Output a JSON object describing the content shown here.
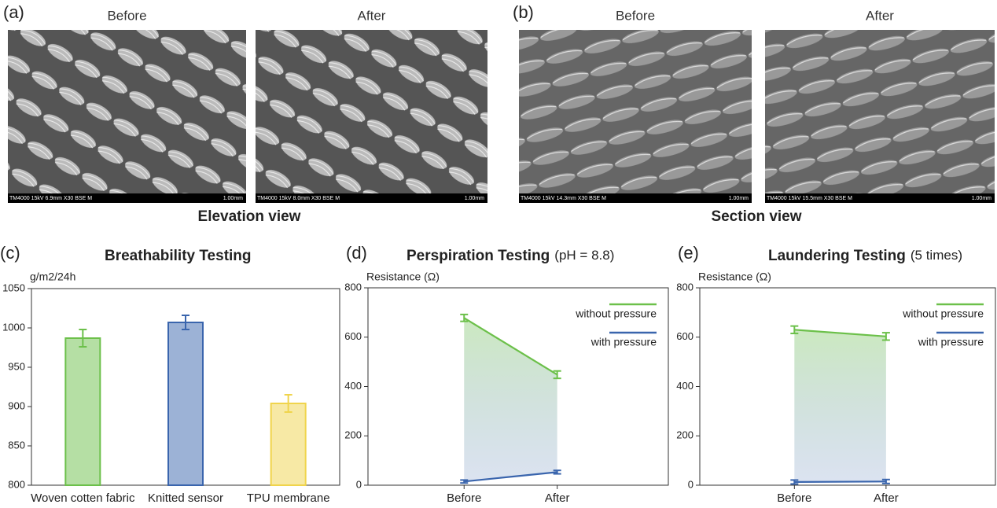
{
  "image_panels": [
    {
      "label": "(a)",
      "caption": "Elevation view",
      "images": [
        {
          "title": "Before",
          "info": "TM4000 15kV 6.9mm X30 BSE M",
          "scale": "1.00mm"
        },
        {
          "title": "After",
          "info": "TM4000 15kV 8.0mm X30 BSE M",
          "scale": "1.00mm"
        }
      ]
    },
    {
      "label": "(b)",
      "caption": "Section view",
      "images": [
        {
          "title": "Before",
          "info": "TM4000 15kV 14.3mm X30 BSE M",
          "scale": "1.00mm"
        },
        {
          "title": "After",
          "info": "TM4000 15kV 15.5mm X30 BSE M",
          "scale": "1.00mm"
        }
      ]
    }
  ],
  "chart_data": [
    {
      "type": "bar",
      "panel_label": "(c)",
      "title": "Breathability Testing",
      "y_label": "g/m2/24h",
      "categories": [
        "Woven cotten fabric",
        "Knitted sensor",
        "TPU membrane"
      ],
      "values": [
        987,
        1007,
        904
      ],
      "errors": [
        11,
        9,
        11
      ],
      "colors": [
        "#6cc04a",
        "#3a65ad",
        "#f0d44c"
      ],
      "ylim": [
        800,
        1050
      ],
      "yticks": [
        800,
        850,
        900,
        950,
        1000,
        1050
      ]
    },
    {
      "type": "line",
      "panel_label": "(d)",
      "title": "Perspiration Testing",
      "subtitle": "(pH = 8.8)",
      "y_label": "Resistance (Ω)",
      "categories": [
        "Before",
        "After"
      ],
      "series": [
        {
          "name": "without pressure",
          "color": "#6cc04a",
          "values": [
            678,
            448
          ],
          "errors": [
            14,
            15
          ]
        },
        {
          "name": "with pressure",
          "color": "#3a65ad",
          "values": [
            15,
            53
          ],
          "errors": [
            6,
            7
          ]
        }
      ],
      "ylim": [
        0,
        800
      ],
      "yticks": [
        0,
        200,
        400,
        600,
        800
      ],
      "legend": "upper right"
    },
    {
      "type": "line",
      "panel_label": "(e)",
      "title": "Laundering Testing",
      "subtitle": "(5 times)",
      "y_label": "Resistance (Ω)",
      "categories": [
        "Before",
        "After"
      ],
      "series": [
        {
          "name": "without pressure",
          "color": "#6cc04a",
          "values": [
            630,
            603
          ],
          "errors": [
            15,
            15
          ]
        },
        {
          "name": "with pressure",
          "color": "#3a65ad",
          "values": [
            13,
            15
          ],
          "errors": [
            8,
            8
          ]
        }
      ],
      "ylim": [
        0,
        800
      ],
      "yticks": [
        0,
        200,
        400,
        600,
        800
      ],
      "legend": "upper right"
    }
  ]
}
